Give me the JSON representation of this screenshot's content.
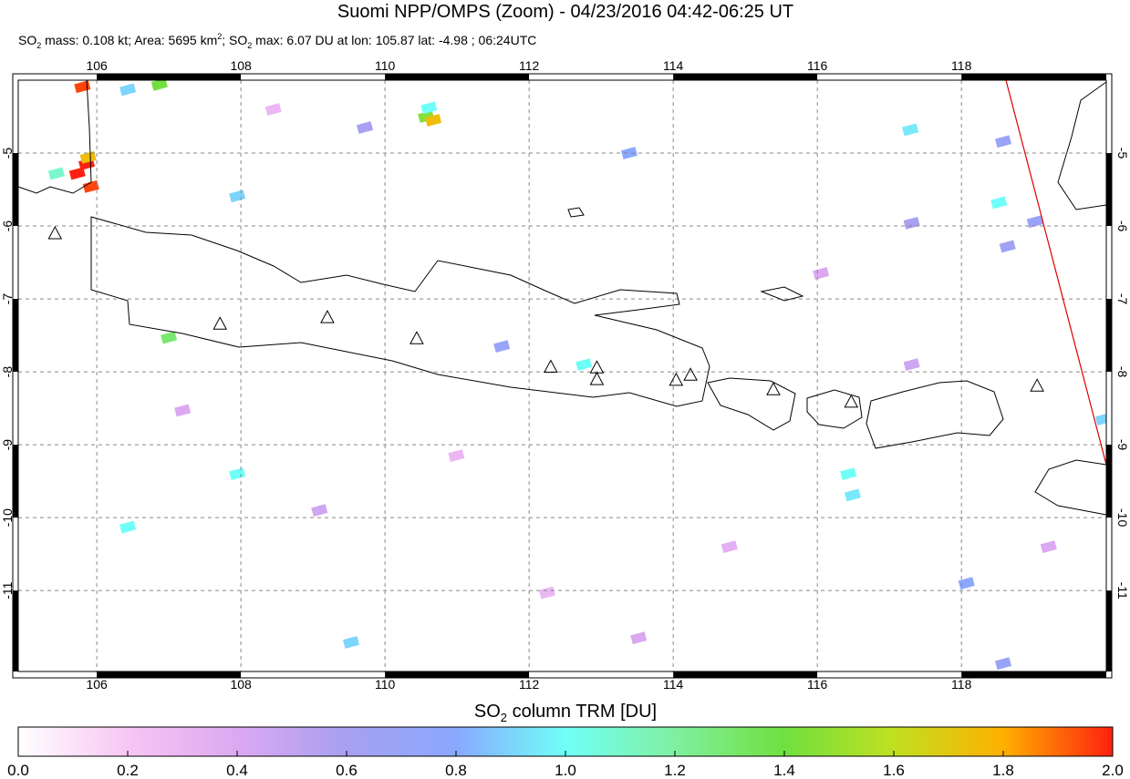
{
  "chart_data": {
    "type": "map",
    "title": "Suomi NPP/OMPS (Zoom) - 04/23/2016 04:42-06:25 UT",
    "subtitle": [
      "SO",
      "2",
      " mass: 0.108 kt; Area: 5695 km",
      "2",
      "; SO",
      "2",
      " max: 6.07 DU at lon: 105.87 lat: -4.98 ; 06:24UTC"
    ],
    "xlim": [
      104.91,
      120.01
    ],
    "ylim": [
      -12.11,
      -4.0
    ],
    "xticks": [
      106,
      108,
      110,
      112,
      114,
      116,
      118
    ],
    "yticks": [
      -5,
      -6,
      -7,
      -8,
      -9,
      -10,
      -11
    ],
    "grid": true,
    "colorbar": {
      "label": [
        "SO",
        "2",
        " column TRM [DU]"
      ],
      "lim": [
        0,
        2
      ],
      "ticks": [
        {
          "value": 0,
          "label": "0.0"
        },
        {
          "value": 0.2,
          "label": "0.2"
        },
        {
          "value": 0.4,
          "label": "0.4"
        },
        {
          "value": 0.6,
          "label": "0.6"
        },
        {
          "value": 0.8,
          "label": "0.8"
        },
        {
          "value": 1,
          "label": "1.0"
        },
        {
          "value": 1.2,
          "label": "1.2"
        },
        {
          "value": 1.4,
          "label": "1.4"
        },
        {
          "value": 1.6,
          "label": "1.6"
        },
        {
          "value": 1.8,
          "label": "1.8"
        },
        {
          "value": 2,
          "label": "2.0"
        }
      ],
      "stops": [
        [
          0,
          "#ffffff"
        ],
        [
          0.2,
          "#f7c6f3"
        ],
        [
          0.4,
          "#dca8f2"
        ],
        [
          0.6,
          "#a8a0f0"
        ],
        [
          0.8,
          "#8aa8ff"
        ],
        [
          1.0,
          "#70fff8"
        ],
        [
          1.2,
          "#80f0a0"
        ],
        [
          1.4,
          "#70e040"
        ],
        [
          1.6,
          "#c0e020"
        ],
        [
          1.8,
          "#ffb000"
        ],
        [
          2.0,
          "#ff2010"
        ]
      ]
    },
    "pixels": [
      {
        "lon": 105.73,
        "lat": -5.28,
        "value": 2.0
      },
      {
        "lon": 105.86,
        "lat": -5.15,
        "value": 2.0
      },
      {
        "lon": 105.92,
        "lat": -5.46,
        "value": 1.95
      },
      {
        "lon": 105.8,
        "lat": -4.09,
        "value": 1.95
      },
      {
        "lon": 105.88,
        "lat": -5.06,
        "value": 1.75
      },
      {
        "lon": 110.57,
        "lat": -4.5,
        "value": 1.45
      },
      {
        "lon": 110.67,
        "lat": -4.55,
        "value": 1.75
      },
      {
        "lon": 110.61,
        "lat": -4.38,
        "value": 1.0
      },
      {
        "lon": 118.52,
        "lat": -5.68,
        "value": 1.0
      },
      {
        "lon": 112.76,
        "lat": -7.9,
        "value": 1.0
      },
      {
        "lon": 117.29,
        "lat": -4.68,
        "value": 0.95
      },
      {
        "lon": 116.43,
        "lat": -9.4,
        "value": 1.0
      },
      {
        "lon": 116.49,
        "lat": -9.69,
        "value": 0.95
      },
      {
        "lon": 107.0,
        "lat": -7.53,
        "value": 1.3
      },
      {
        "lon": 106.43,
        "lat": -4.13,
        "value": 0.9
      },
      {
        "lon": 106.87,
        "lat": -4.06,
        "value": 1.4
      },
      {
        "lon": 105.44,
        "lat": -5.28,
        "value": 1.1
      },
      {
        "lon": 111.62,
        "lat": -7.65,
        "value": 0.7
      },
      {
        "lon": 118.58,
        "lat": -4.84,
        "value": 0.7
      },
      {
        "lon": 119.02,
        "lat": -5.94,
        "value": 0.7
      },
      {
        "lon": 118.64,
        "lat": -6.28,
        "value": 0.65
      },
      {
        "lon": 117.31,
        "lat": -5.96,
        "value": 0.6
      },
      {
        "lon": 113.39,
        "lat": -5.0,
        "value": 0.8
      },
      {
        "lon": 109.72,
        "lat": -4.65,
        "value": 0.6
      },
      {
        "lon": 107.95,
        "lat": -5.59,
        "value": 0.9
      },
      {
        "lon": 107.95,
        "lat": -9.4,
        "value": 1.0
      },
      {
        "lon": 106.43,
        "lat": -10.13,
        "value": 1.0
      },
      {
        "lon": 109.53,
        "lat": -11.71,
        "value": 0.9
      },
      {
        "lon": 118.07,
        "lat": -10.9,
        "value": 0.8
      },
      {
        "lon": 118.58,
        "lat": -12.0,
        "value": 0.7
      },
      {
        "lon": 119.97,
        "lat": -8.65,
        "value": 0.9
      },
      {
        "lon": 108.45,
        "lat": -4.4,
        "value": 0.3
      },
      {
        "lon": 110.99,
        "lat": -9.15,
        "value": 0.3
      },
      {
        "lon": 114.78,
        "lat": -10.4,
        "value": 0.35
      },
      {
        "lon": 112.25,
        "lat": -11.03,
        "value": 0.3
      },
      {
        "lon": 107.19,
        "lat": -8.53,
        "value": 0.4
      },
      {
        "lon": 116.05,
        "lat": -6.65,
        "value": 0.4
      },
      {
        "lon": 113.52,
        "lat": -11.65,
        "value": 0.4
      },
      {
        "lon": 117.31,
        "lat": -7.9,
        "value": 0.45
      },
      {
        "lon": 109.09,
        "lat": -9.9,
        "value": 0.45
      },
      {
        "lon": 119.21,
        "lat": -10.4,
        "value": 0.4
      }
    ],
    "volcanoes": [
      {
        "lon": 105.42,
        "lat": -6.1
      },
      {
        "lon": 107.71,
        "lat": -7.34
      },
      {
        "lon": 109.2,
        "lat": -7.25
      },
      {
        "lon": 110.44,
        "lat": -7.54
      },
      {
        "lon": 112.3,
        "lat": -7.93
      },
      {
        "lon": 112.94,
        "lat": -7.94
      },
      {
        "lon": 112.94,
        "lat": -8.1
      },
      {
        "lon": 114.04,
        "lat": -8.11
      },
      {
        "lon": 114.24,
        "lat": -8.04
      },
      {
        "lon": 115.39,
        "lat": -8.24
      },
      {
        "lon": 116.47,
        "lat": -8.41
      },
      {
        "lon": 119.05,
        "lat": -8.19
      }
    ]
  }
}
